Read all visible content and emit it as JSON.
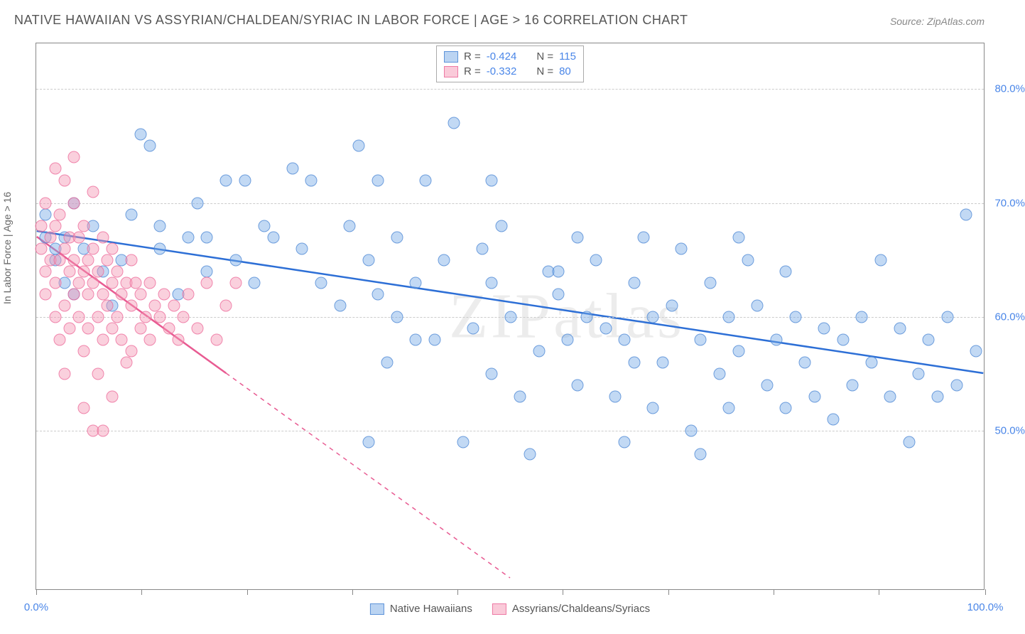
{
  "title": "NATIVE HAWAIIAN VS ASSYRIAN/CHALDEAN/SYRIAC IN LABOR FORCE | AGE > 16 CORRELATION CHART",
  "source": "Source: ZipAtlas.com",
  "watermark": "ZIPatlas",
  "y_axis_label": "In Labor Force | Age > 16",
  "chart": {
    "type": "scatter",
    "xlim": [
      0,
      100
    ],
    "ylim": [
      36,
      84
    ],
    "y_ticks": [
      50,
      60,
      70,
      80
    ],
    "y_tick_labels": [
      "50.0%",
      "60.0%",
      "70.0%",
      "80.0%"
    ],
    "x_ticks": [
      0,
      11.1,
      22.2,
      33.3,
      44.4,
      55.5,
      66.6,
      77.7,
      88.8,
      100
    ],
    "x_tick_labels": {
      "0": "0.0%",
      "100": "100.0%"
    },
    "background_color": "#ffffff",
    "grid_color": "#cccccc",
    "marker_size": 17,
    "series": [
      {
        "name": "Native Hawaiians",
        "color_fill": "rgba(120,170,230,0.45)",
        "color_stroke": "rgba(70,130,210,0.7)",
        "R": "-0.424",
        "N": "115",
        "trend": {
          "x1": 0,
          "y1": 67.5,
          "x2": 100,
          "y2": 55.0,
          "solid_until": 100,
          "color": "#2d6fd6",
          "width": 2.5
        },
        "points": [
          [
            1,
            67
          ],
          [
            1,
            69
          ],
          [
            2,
            66
          ],
          [
            2,
            65
          ],
          [
            3,
            67
          ],
          [
            3,
            63
          ],
          [
            4,
            70
          ],
          [
            4,
            62
          ],
          [
            5,
            66
          ],
          [
            6,
            68
          ],
          [
            7,
            64
          ],
          [
            8,
            61
          ],
          [
            9,
            65
          ],
          [
            10,
            69
          ],
          [
            11,
            76
          ],
          [
            12,
            75
          ],
          [
            13,
            66
          ],
          [
            13,
            68
          ],
          [
            15,
            62
          ],
          [
            16,
            67
          ],
          [
            17,
            70
          ],
          [
            18,
            67
          ],
          [
            18,
            64
          ],
          [
            20,
            72
          ],
          [
            21,
            65
          ],
          [
            22,
            72
          ],
          [
            23,
            63
          ],
          [
            24,
            68
          ],
          [
            25,
            67
          ],
          [
            27,
            73
          ],
          [
            28,
            66
          ],
          [
            29,
            72
          ],
          [
            30,
            63
          ],
          [
            32,
            61
          ],
          [
            33,
            68
          ],
          [
            34,
            75
          ],
          [
            35,
            65
          ],
          [
            36,
            62
          ],
          [
            36,
            72
          ],
          [
            37,
            56
          ],
          [
            38,
            67
          ],
          [
            38,
            60
          ],
          [
            40,
            63
          ],
          [
            41,
            72
          ],
          [
            42,
            58
          ],
          [
            43,
            65
          ],
          [
            44,
            77
          ],
          [
            45,
            49
          ],
          [
            46,
            59
          ],
          [
            47,
            66
          ],
          [
            48,
            63
          ],
          [
            48,
            55
          ],
          [
            49,
            68
          ],
          [
            50,
            60
          ],
          [
            51,
            53
          ],
          [
            52,
            48
          ],
          [
            53,
            57
          ],
          [
            54,
            64
          ],
          [
            55,
            62
          ],
          [
            56,
            58
          ],
          [
            57,
            54
          ],
          [
            57,
            67
          ],
          [
            58,
            60
          ],
          [
            59,
            65
          ],
          [
            60,
            59
          ],
          [
            61,
            53
          ],
          [
            62,
            58
          ],
          [
            63,
            56
          ],
          [
            63,
            63
          ],
          [
            64,
            67
          ],
          [
            65,
            60
          ],
          [
            65,
            52
          ],
          [
            66,
            56
          ],
          [
            67,
            61
          ],
          [
            68,
            66
          ],
          [
            69,
            50
          ],
          [
            70,
            58
          ],
          [
            71,
            63
          ],
          [
            72,
            55
          ],
          [
            73,
            52
          ],
          [
            73,
            60
          ],
          [
            74,
            67
          ],
          [
            74,
            57
          ],
          [
            75,
            65
          ],
          [
            76,
            61
          ],
          [
            77,
            54
          ],
          [
            78,
            58
          ],
          [
            79,
            52
          ],
          [
            79,
            64
          ],
          [
            80,
            60
          ],
          [
            81,
            56
          ],
          [
            82,
            53
          ],
          [
            83,
            59
          ],
          [
            84,
            51
          ],
          [
            85,
            58
          ],
          [
            86,
            54
          ],
          [
            87,
            60
          ],
          [
            88,
            56
          ],
          [
            89,
            65
          ],
          [
            90,
            53
          ],
          [
            91,
            59
          ],
          [
            92,
            49
          ],
          [
            93,
            55
          ],
          [
            94,
            58
          ],
          [
            95,
            53
          ],
          [
            96,
            60
          ],
          [
            97,
            54
          ],
          [
            98,
            69
          ],
          [
            99,
            57
          ],
          [
            70,
            48
          ],
          [
            62,
            49
          ],
          [
            55,
            64
          ],
          [
            48,
            72
          ],
          [
            40,
            58
          ],
          [
            35,
            49
          ]
        ]
      },
      {
        "name": "Assyrians/Chaldeans/Syriacs",
        "color_fill": "rgba(245,150,180,0.45)",
        "color_stroke": "rgba(235,100,150,0.7)",
        "R": "-0.332",
        "N": "80",
        "trend": {
          "x1": 0,
          "y1": 67.0,
          "x2": 50,
          "y2": 37.0,
          "solid_until": 20,
          "color": "#e85b92",
          "width": 2.5
        },
        "points": [
          [
            0.5,
            68
          ],
          [
            0.5,
            66
          ],
          [
            1,
            70
          ],
          [
            1,
            64
          ],
          [
            1,
            62
          ],
          [
            1.5,
            67
          ],
          [
            1.5,
            65
          ],
          [
            2,
            73
          ],
          [
            2,
            60
          ],
          [
            2,
            63
          ],
          [
            2,
            68
          ],
          [
            2.5,
            69
          ],
          [
            2.5,
            65
          ],
          [
            2.5,
            58
          ],
          [
            3,
            72
          ],
          [
            3,
            66
          ],
          [
            3,
            61
          ],
          [
            3,
            55
          ],
          [
            3.5,
            67
          ],
          [
            3.5,
            64
          ],
          [
            3.5,
            59
          ],
          [
            4,
            70
          ],
          [
            4,
            65
          ],
          [
            4,
            62
          ],
          [
            4,
            74
          ],
          [
            4.5,
            63
          ],
          [
            4.5,
            60
          ],
          [
            4.5,
            67
          ],
          [
            5,
            68
          ],
          [
            5,
            64
          ],
          [
            5,
            57
          ],
          [
            5,
            52
          ],
          [
            5.5,
            65
          ],
          [
            5.5,
            62
          ],
          [
            5.5,
            59
          ],
          [
            6,
            71
          ],
          [
            6,
            66
          ],
          [
            6,
            63
          ],
          [
            6,
            50
          ],
          [
            6.5,
            64
          ],
          [
            6.5,
            60
          ],
          [
            6.5,
            55
          ],
          [
            7,
            67
          ],
          [
            7,
            62
          ],
          [
            7,
            58
          ],
          [
            7,
            50
          ],
          [
            7.5,
            65
          ],
          [
            7.5,
            61
          ],
          [
            8,
            66
          ],
          [
            8,
            63
          ],
          [
            8,
            59
          ],
          [
            8,
            53
          ],
          [
            8.5,
            64
          ],
          [
            8.5,
            60
          ],
          [
            9,
            62
          ],
          [
            9,
            58
          ],
          [
            9.5,
            63
          ],
          [
            9.5,
            56
          ],
          [
            10,
            65
          ],
          [
            10,
            61
          ],
          [
            10,
            57
          ],
          [
            10.5,
            63
          ],
          [
            11,
            62
          ],
          [
            11,
            59
          ],
          [
            11.5,
            60
          ],
          [
            12,
            63
          ],
          [
            12,
            58
          ],
          [
            12.5,
            61
          ],
          [
            13,
            60
          ],
          [
            13.5,
            62
          ],
          [
            14,
            59
          ],
          [
            14.5,
            61
          ],
          [
            15,
            58
          ],
          [
            15.5,
            60
          ],
          [
            16,
            62
          ],
          [
            17,
            59
          ],
          [
            18,
            63
          ],
          [
            19,
            58
          ],
          [
            20,
            61
          ],
          [
            21,
            63
          ]
        ]
      }
    ],
    "legend_labels": {
      "R_prefix": "R =",
      "N_prefix": "N ="
    }
  }
}
